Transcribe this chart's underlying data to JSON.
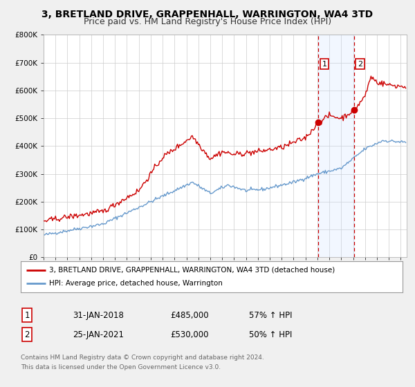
{
  "title": "3, BRETLAND DRIVE, GRAPPENHALL, WARRINGTON, WA4 3TD",
  "subtitle": "Price paid vs. HM Land Registry's House Price Index (HPI)",
  "ylim": [
    0,
    800000
  ],
  "yticks": [
    0,
    100000,
    200000,
    300000,
    400000,
    500000,
    600000,
    700000,
    800000
  ],
  "ytick_labels": [
    "£0",
    "£100K",
    "£200K",
    "£300K",
    "£400K",
    "£500K",
    "£600K",
    "£700K",
    "£800K"
  ],
  "xlim_start": 1995.0,
  "xlim_end": 2025.5,
  "background_color": "#f0f0f0",
  "plot_bg_color": "#ffffff",
  "grid_color": "#cccccc",
  "red_line_color": "#cc0000",
  "blue_line_color": "#6699cc",
  "sale1_x": 2018.083,
  "sale1_y": 485000,
  "sale2_x": 2021.083,
  "sale2_y": 530000,
  "sale1_label": "1",
  "sale2_label": "2",
  "vline_color": "#cc0000",
  "marker_color": "#cc0000",
  "span_color": "#cce0ff",
  "legend_red_label": "3, BRETLAND DRIVE, GRAPPENHALL, WARRINGTON, WA4 3TD (detached house)",
  "legend_blue_label": "HPI: Average price, detached house, Warrington",
  "table_row1": [
    "1",
    "31-JAN-2018",
    "£485,000",
    "57% ↑ HPI"
  ],
  "table_row2": [
    "2",
    "25-JAN-2021",
    "£530,000",
    "50% ↑ HPI"
  ],
  "footer_line1": "Contains HM Land Registry data © Crown copyright and database right 2024.",
  "footer_line2": "This data is licensed under the Open Government Licence v3.0.",
  "title_fontsize": 10,
  "subtitle_fontsize": 9,
  "axis_fontsize": 7.5,
  "legend_fontsize": 8,
  "table_fontsize": 8.5
}
